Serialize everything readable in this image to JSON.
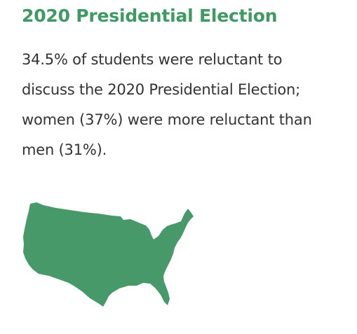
{
  "title": "2020 Presidential Election",
  "body": {
    "lines": [
      "34.5% of students were reluctant to",
      "discuss the 2020 Presidential Election;",
      "women (37%) were more reluctant than",
      "men (31%)."
    ]
  },
  "illustration": {
    "icon": "us-map-icon",
    "color": "#47996a"
  }
}
